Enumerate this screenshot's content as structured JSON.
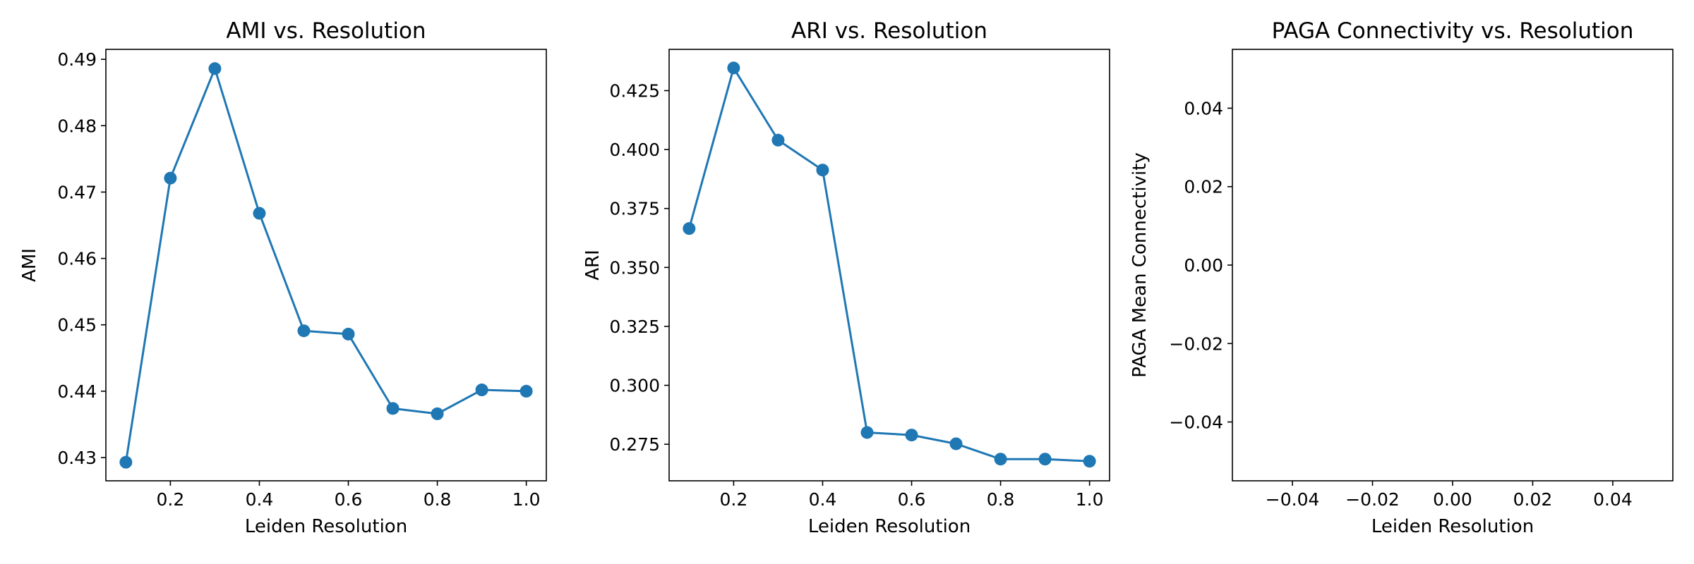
{
  "chart_data": [
    {
      "type": "line",
      "title": "AMI vs. Resolution",
      "xlabel": "Leiden Resolution",
      "ylabel": "AMI",
      "xlim": [
        0.055,
        1.045
      ],
      "ylim": [
        0.4265,
        0.4915
      ],
      "xticks": [
        "0.2",
        "0.4",
        "0.6",
        "0.8",
        "1.0"
      ],
      "yticks": [
        "0.43",
        "0.44",
        "0.45",
        "0.46",
        "0.47",
        "0.48",
        "0.49"
      ],
      "grid": false,
      "color": "#1f77b4",
      "marker": "circle",
      "series": [
        {
          "x": [
            0.1,
            0.2,
            0.3,
            0.4,
            0.5,
            0.6,
            0.7,
            0.8,
            0.9,
            1.0
          ],
          "values": [
            0.4293,
            0.4721,
            0.4886,
            0.4668,
            0.4491,
            0.4486,
            0.4374,
            0.4366,
            0.4402,
            0.44
          ]
        }
      ]
    },
    {
      "type": "line",
      "title": "ARI vs. Resolution",
      "xlabel": "Leiden Resolution",
      "ylabel": "ARI",
      "xlim": [
        0.055,
        1.045
      ],
      "ylim": [
        0.2595,
        0.4425
      ],
      "xticks": [
        "0.2",
        "0.4",
        "0.6",
        "0.8",
        "1.0"
      ],
      "yticks": [
        "0.275",
        "0.300",
        "0.325",
        "0.350",
        "0.375",
        "0.400",
        "0.425"
      ],
      "grid": false,
      "color": "#1f77b4",
      "marker": "circle",
      "series": [
        {
          "x": [
            0.1,
            0.2,
            0.3,
            0.4,
            0.5,
            0.6,
            0.7,
            0.8,
            0.9,
            1.0
          ],
          "values": [
            0.3665,
            0.4346,
            0.404,
            0.3913,
            0.28,
            0.2789,
            0.2752,
            0.2687,
            0.2687,
            0.2678
          ]
        }
      ]
    },
    {
      "type": "line",
      "title": "PAGA Connectivity vs. Resolution",
      "xlabel": "Leiden Resolution",
      "ylabel": "PAGA Mean Connectivity",
      "xlim": [
        -0.055,
        0.055
      ],
      "ylim": [
        -0.055,
        0.055
      ],
      "xticks": [
        "−0.04",
        "−0.02",
        "0.00",
        "0.02",
        "0.04"
      ],
      "yticks": [
        "−0.04",
        "−0.02",
        "0.00",
        "0.02",
        "0.04"
      ],
      "grid": false,
      "color": "#1f77b4",
      "marker": "circle",
      "series": [
        {
          "x": [],
          "values": []
        }
      ]
    }
  ]
}
